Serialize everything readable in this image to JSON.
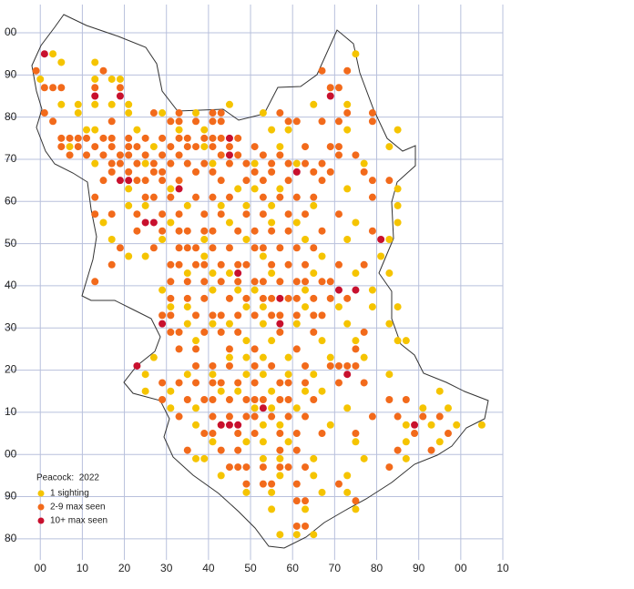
{
  "chart_data": {
    "type": "scatter",
    "xlim": [
      -8.5,
      110
    ],
    "ylim": [
      -25,
      106.7
    ],
    "xticks": [
      {
        "value": 0,
        "label": "00"
      },
      10,
      20,
      30,
      40,
      50,
      60,
      70,
      80,
      90,
      {
        "value": 100,
        "label": "00"
      },
      {
        "value": 110,
        "label": "10"
      }
    ],
    "yticks": [
      {
        "value": 100,
        "label": "00"
      },
      90,
      80,
      70,
      60,
      50,
      40,
      30,
      20,
      10,
      {
        "value": 0,
        "label": "00"
      },
      {
        "value": -10,
        "label": "90"
      },
      {
        "value": -20,
        "label": "80"
      }
    ],
    "grid": true,
    "legend_title": "Peacock:  2022",
    "legend": "bottom-left",
    "series": [
      {
        "name": "1 sighting",
        "color": "#f5c400",
        "x": [
          3,
          75,
          5,
          13,
          0,
          13,
          17,
          19,
          5,
          9,
          13,
          17,
          21,
          45,
          65,
          73,
          9,
          21,
          29,
          37,
          53,
          11,
          13,
          23,
          33,
          39,
          55,
          59,
          73,
          85,
          7,
          27,
          39,
          57,
          83,
          13,
          25,
          41,
          51,
          61,
          77,
          21,
          31,
          47,
          51,
          57,
          73,
          85,
          21,
          25,
          35,
          43,
          49,
          55,
          65,
          85,
          15,
          31,
          45,
          55,
          61,
          75,
          85,
          17,
          29,
          39,
          49,
          63,
          73,
          83,
          21,
          25,
          39,
          53,
          67,
          81,
          35,
          41,
          45,
          55,
          65,
          75,
          83,
          29,
          41,
          47,
          51,
          63,
          79,
          31,
          35,
          49,
          53,
          63,
          71,
          79,
          85,
          35,
          41,
          45,
          53,
          61,
          73,
          83,
          37,
          49,
          55,
          67,
          75,
          85,
          87,
          27,
          45,
          49,
          53,
          59,
          69,
          77,
          25,
          35,
          41,
          49,
          53,
          59,
          65,
          83,
          25,
          31,
          43,
          47,
          55,
          63,
          67,
          95,
          31,
          37,
          51,
          55,
          61,
          73,
          91,
          97,
          37,
          43,
          53,
          57,
          69,
          87,
          93,
          99,
          105,
          41,
          49,
          53,
          59,
          75,
          87,
          95,
          37,
          39,
          53,
          57,
          65,
          77,
          87,
          43,
          57,
          65,
          73,
          49,
          55,
          67,
          73,
          55,
          63,
          75,
          57,
          61,
          65
        ],
        "values": [
          95,
          95,
          93,
          93,
          89,
          89,
          89,
          89,
          83,
          83,
          83,
          83,
          83,
          83,
          83,
          83,
          81,
          81,
          81,
          81,
          81,
          77,
          77,
          77,
          77,
          77,
          77,
          77,
          77,
          77,
          73,
          73,
          73,
          73,
          73,
          69,
          69,
          69,
          69,
          69,
          69,
          63,
          63,
          63,
          63,
          63,
          63,
          63,
          59,
          59,
          59,
          59,
          59,
          59,
          59,
          59,
          55,
          55,
          55,
          55,
          55,
          55,
          55,
          51,
          51,
          51,
          51,
          51,
          51,
          51,
          47,
          47,
          47,
          47,
          47,
          47,
          43,
          43,
          43,
          43,
          43,
          43,
          43,
          39,
          39,
          39,
          39,
          39,
          39,
          35,
          35,
          35,
          35,
          35,
          35,
          35,
          35,
          31,
          31,
          31,
          31,
          31,
          31,
          31,
          27,
          27,
          27,
          27,
          27,
          27,
          27,
          23,
          23,
          23,
          23,
          23,
          23,
          23,
          19,
          19,
          19,
          19,
          19,
          19,
          19,
          19,
          15,
          15,
          15,
          15,
          15,
          15,
          15,
          15,
          11,
          11,
          11,
          11,
          11,
          11,
          11,
          11,
          7,
          7,
          7,
          7,
          7,
          7,
          7,
          7,
          7,
          3,
          3,
          3,
          3,
          3,
          3,
          3,
          -1,
          -1,
          -1,
          -1,
          -1,
          -1,
          -1,
          -5,
          -5,
          -5,
          -5,
          -9,
          -9,
          -9,
          -9,
          -13,
          -13,
          -13,
          -19,
          -19,
          -19
        ]
      },
      {
        "name": "2-9 max seen",
        "color": "#f26a1b",
        "x": [
          -1,
          15,
          67,
          73,
          1,
          3,
          5,
          13,
          19,
          69,
          71,
          1,
          27,
          33,
          41,
          43,
          57,
          73,
          79,
          3,
          17,
          31,
          33,
          37,
          41,
          43,
          59,
          61,
          67,
          71,
          79,
          5,
          7,
          9,
          11,
          15,
          17,
          21,
          25,
          29,
          33,
          35,
          39,
          41,
          43,
          47,
          5,
          9,
          13,
          17,
          21,
          23,
          31,
          35,
          37,
          41,
          45,
          51,
          63,
          69,
          71,
          7,
          11,
          15,
          19,
          21,
          25,
          29,
          33,
          43,
          47,
          53,
          57,
          71,
          75,
          17,
          19,
          23,
          27,
          31,
          35,
          39,
          45,
          49,
          55,
          59,
          63,
          67,
          17,
          21,
          27,
          29,
          37,
          41,
          51,
          55,
          65,
          69,
          77,
          15,
          23,
          25,
          29,
          33,
          43,
          49,
          53,
          59,
          67,
          79,
          83,
          13,
          25,
          27,
          31,
          37,
          41,
          45,
          53,
          57,
          61,
          65,
          79,
          13,
          17,
          23,
          29,
          33,
          39,
          43,
          49,
          53,
          59,
          63,
          71,
          23,
          29,
          33,
          35,
          39,
          41,
          47,
          51,
          55,
          59,
          67,
          79,
          19,
          27,
          33,
          35,
          37,
          41,
          45,
          51,
          53,
          57,
          61,
          65,
          17,
          31,
          33,
          37,
          39,
          43,
          47,
          49,
          55,
          59,
          63,
          71,
          77,
          13,
          31,
          35,
          39,
          43,
          47,
          51,
          53,
          57,
          61,
          63,
          67,
          69,
          31,
          35,
          39,
          45,
          49,
          53,
          55,
          59,
          61,
          65,
          69,
          73,
          29,
          31,
          37,
          41,
          43,
          47,
          51,
          55,
          57,
          61,
          65,
          67,
          31,
          33,
          39,
          43,
          47,
          57,
          65,
          77,
          33,
          37,
          45,
          51,
          61,
          75,
          37,
          41,
          45,
          51,
          55,
          63,
          69,
          71,
          73,
          75,
          29,
          33,
          37,
          41,
          43,
          47,
          51,
          57,
          59,
          63,
          71,
          77,
          29,
          35,
          39,
          41,
          45,
          49,
          51,
          53,
          57,
          59,
          65,
          83,
          87,
          33,
          41,
          45,
          49,
          51,
          55,
          59,
          63,
          79,
          85,
          91,
          95,
          39,
          41,
          47,
          51,
          57,
          61,
          67,
          75,
          89,
          97,
          35,
          43,
          47,
          57,
          61,
          85,
          93,
          45,
          47,
          49,
          53,
          57,
          59,
          63,
          83,
          49,
          53,
          55,
          61,
          71,
          61,
          63,
          75,
          61,
          63
        ],
        "values": [
          91,
          91,
          91,
          91,
          87,
          87,
          87,
          87,
          87,
          87,
          87,
          81,
          81,
          81,
          81,
          81,
          81,
          81,
          81,
          79,
          79,
          79,
          79,
          79,
          79,
          79,
          79,
          79,
          79,
          79,
          79,
          75,
          75,
          75,
          75,
          75,
          75,
          75,
          75,
          75,
          75,
          75,
          75,
          75,
          75,
          75,
          73,
          73,
          73,
          73,
          73,
          73,
          73,
          73,
          73,
          73,
          73,
          73,
          73,
          73,
          73,
          71,
          71,
          71,
          71,
          71,
          71,
          71,
          71,
          71,
          71,
          71,
          71,
          71,
          71,
          69,
          69,
          69,
          69,
          69,
          69,
          69,
          69,
          69,
          69,
          69,
          69,
          69,
          67,
          67,
          67,
          67,
          67,
          67,
          67,
          67,
          67,
          67,
          67,
          65,
          65,
          65,
          65,
          65,
          65,
          65,
          65,
          65,
          65,
          65,
          65,
          61,
          61,
          61,
          61,
          61,
          61,
          61,
          61,
          61,
          61,
          61,
          61,
          57,
          57,
          57,
          57,
          57,
          57,
          57,
          57,
          57,
          57,
          57,
          57,
          53,
          53,
          53,
          53,
          53,
          53,
          53,
          53,
          53,
          53,
          53,
          53,
          49,
          49,
          49,
          49,
          49,
          49,
          49,
          49,
          49,
          49,
          49,
          49,
          45,
          45,
          45,
          45,
          45,
          45,
          45,
          45,
          45,
          45,
          45,
          45,
          45,
          41,
          41,
          41,
          41,
          41,
          41,
          41,
          41,
          41,
          41,
          41,
          41,
          41,
          37,
          37,
          37,
          37,
          37,
          37,
          37,
          37,
          37,
          37,
          37,
          37,
          33,
          33,
          33,
          33,
          33,
          33,
          33,
          33,
          33,
          33,
          33,
          33,
          29,
          29,
          29,
          29,
          29,
          29,
          29,
          29,
          25,
          25,
          25,
          25,
          25,
          25,
          21,
          21,
          21,
          21,
          21,
          21,
          21,
          21,
          21,
          21,
          17,
          17,
          17,
          17,
          17,
          17,
          17,
          17,
          17,
          17,
          17,
          17,
          13,
          13,
          13,
          13,
          13,
          13,
          13,
          13,
          13,
          13,
          13,
          13,
          13,
          9,
          9,
          9,
          9,
          9,
          9,
          9,
          9,
          9,
          9,
          9,
          9,
          5,
          5,
          5,
          5,
          5,
          5,
          5,
          5,
          5,
          5,
          1,
          1,
          1,
          1,
          1,
          1,
          1,
          -3,
          -3,
          -3,
          -3,
          -3,
          -3,
          -3,
          -3,
          -7,
          -7,
          -7,
          -7,
          -7,
          -11,
          -11,
          -11,
          -17,
          -17
        ]
      },
      {
        "name": "10+ max seen",
        "color": "#c8102e",
        "x": [
          1,
          13,
          19,
          19,
          21,
          25,
          27,
          33,
          45,
          45,
          47,
          57,
          57,
          29,
          23,
          43,
          45,
          47,
          61,
          69,
          71,
          75,
          73,
          53,
          81,
          89
        ],
        "values": [
          95,
          85,
          85,
          65,
          65,
          55,
          55,
          63,
          75,
          71,
          43,
          37,
          31,
          31,
          21,
          7,
          7,
          7,
          67,
          85,
          39,
          39,
          19,
          11,
          51,
          7
        ]
      }
    ]
  }
}
